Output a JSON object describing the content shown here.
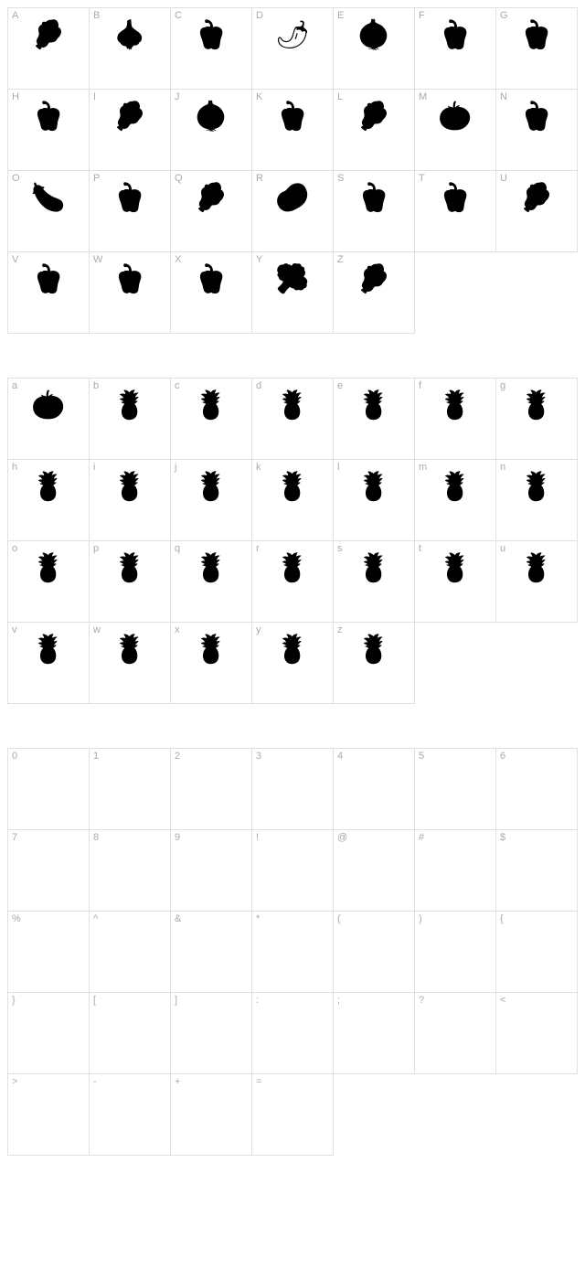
{
  "ui_colors": {
    "cell_border": "#e0e0e0",
    "label_color": "#aaaaaa",
    "glyph_color": "#000000",
    "background": "#ffffff"
  },
  "label_fontsize": 11,
  "sections": [
    {
      "id": "uppercase",
      "columns": 7,
      "cells": [
        {
          "label": "A",
          "glyph": "🥬",
          "icon": "lettuce-icon"
        },
        {
          "label": "B",
          "glyph": "🧄",
          "icon": "garlic-icon"
        },
        {
          "label": "C",
          "glyph": "🫑",
          "icon": "pepper-icon"
        },
        {
          "label": "D",
          "glyph": "🌶",
          "icon": "chili-icon"
        },
        {
          "label": "E",
          "glyph": "🧅",
          "icon": "onion-icon"
        },
        {
          "label": "F",
          "glyph": "🫑",
          "icon": "pepper-icon"
        },
        {
          "label": "G",
          "glyph": "🫑",
          "icon": "pepper-icon"
        },
        {
          "label": "H",
          "glyph": "🫑",
          "icon": "pepper-icon"
        },
        {
          "label": "I",
          "glyph": "🥬",
          "icon": "cabbage-icon"
        },
        {
          "label": "J",
          "glyph": "🧅",
          "icon": "onion-icon"
        },
        {
          "label": "K",
          "glyph": "🫑",
          "icon": "pepper-icon"
        },
        {
          "label": "L",
          "glyph": "🥬",
          "icon": "lettuce-icon"
        },
        {
          "label": "M",
          "glyph": "🍅",
          "icon": "tomato-icon"
        },
        {
          "label": "N",
          "glyph": "🫑",
          "icon": "pepper-icon"
        },
        {
          "label": "O",
          "glyph": "🍆",
          "icon": "eggplant-icon"
        },
        {
          "label": "P",
          "glyph": "🫑",
          "icon": "pepper-icon"
        },
        {
          "label": "Q",
          "glyph": "🥬",
          "icon": "cabbage-icon"
        },
        {
          "label": "R",
          "glyph": "🥔",
          "icon": "potato-icon"
        },
        {
          "label": "S",
          "glyph": "🫑",
          "icon": "pepper-icon"
        },
        {
          "label": "T",
          "glyph": "🫑",
          "icon": "pepper-icon"
        },
        {
          "label": "U",
          "glyph": "🥬",
          "icon": "lettuce-icon"
        },
        {
          "label": "V",
          "glyph": "🫑",
          "icon": "pepper-icon"
        },
        {
          "label": "W",
          "glyph": "🫑",
          "icon": "pepper-icon"
        },
        {
          "label": "X",
          "glyph": "🫑",
          "icon": "pepper-icon"
        },
        {
          "label": "Y",
          "glyph": "🥦",
          "icon": "broccoli-icon"
        },
        {
          "label": "Z",
          "glyph": "🥬",
          "icon": "lettuce-icon"
        }
      ]
    },
    {
      "id": "lowercase",
      "columns": 7,
      "cells": [
        {
          "label": "a",
          "glyph": "🍅",
          "icon": "tomato-icon"
        },
        {
          "label": "b",
          "glyph": "🍍",
          "icon": "pineapple-icon"
        },
        {
          "label": "c",
          "glyph": "🍍",
          "icon": "pineapple-icon"
        },
        {
          "label": "d",
          "glyph": "🍍",
          "icon": "pineapple-icon"
        },
        {
          "label": "e",
          "glyph": "🍍",
          "icon": "pineapple-icon"
        },
        {
          "label": "f",
          "glyph": "🍍",
          "icon": "pineapple-icon"
        },
        {
          "label": "g",
          "glyph": "🍍",
          "icon": "pineapple-icon"
        },
        {
          "label": "h",
          "glyph": "🍍",
          "icon": "pineapple-icon"
        },
        {
          "label": "i",
          "glyph": "🍍",
          "icon": "pineapple-icon"
        },
        {
          "label": "j",
          "glyph": "🍍",
          "icon": "pineapple-icon"
        },
        {
          "label": "k",
          "glyph": "🍍",
          "icon": "pineapple-icon"
        },
        {
          "label": "l",
          "glyph": "🍍",
          "icon": "pineapple-icon"
        },
        {
          "label": "m",
          "glyph": "🍍",
          "icon": "pineapple-icon"
        },
        {
          "label": "n",
          "glyph": "🍍",
          "icon": "pineapple-icon"
        },
        {
          "label": "o",
          "glyph": "🍍",
          "icon": "pineapple-icon"
        },
        {
          "label": "p",
          "glyph": "🍍",
          "icon": "pineapple-icon"
        },
        {
          "label": "q",
          "glyph": "🍍",
          "icon": "pineapple-icon"
        },
        {
          "label": "r",
          "glyph": "🍍",
          "icon": "pineapple-icon"
        },
        {
          "label": "s",
          "glyph": "🍍",
          "icon": "pineapple-icon"
        },
        {
          "label": "t",
          "glyph": "🍍",
          "icon": "pineapple-icon"
        },
        {
          "label": "u",
          "glyph": "🍍",
          "icon": "pineapple-icon"
        },
        {
          "label": "v",
          "glyph": "🍍",
          "icon": "pineapple-icon"
        },
        {
          "label": "w",
          "glyph": "🍍",
          "icon": "pineapple-icon"
        },
        {
          "label": "x",
          "glyph": "🍍",
          "icon": "pineapple-icon"
        },
        {
          "label": "y",
          "glyph": "🍍",
          "icon": "pineapple-icon"
        },
        {
          "label": "z",
          "glyph": "🍍",
          "icon": "pineapple-icon"
        }
      ]
    },
    {
      "id": "symbols",
      "columns": 7,
      "cells": [
        {
          "label": "0",
          "glyph": "",
          "icon": "empty-icon"
        },
        {
          "label": "1",
          "glyph": "",
          "icon": "empty-icon"
        },
        {
          "label": "2",
          "glyph": "",
          "icon": "empty-icon"
        },
        {
          "label": "3",
          "glyph": "",
          "icon": "empty-icon"
        },
        {
          "label": "4",
          "glyph": "",
          "icon": "empty-icon"
        },
        {
          "label": "5",
          "glyph": "",
          "icon": "empty-icon"
        },
        {
          "label": "6",
          "glyph": "",
          "icon": "empty-icon"
        },
        {
          "label": "7",
          "glyph": "",
          "icon": "empty-icon"
        },
        {
          "label": "8",
          "glyph": "",
          "icon": "empty-icon"
        },
        {
          "label": "9",
          "glyph": "",
          "icon": "empty-icon"
        },
        {
          "label": "!",
          "glyph": "",
          "icon": "empty-icon"
        },
        {
          "label": "@",
          "glyph": "",
          "icon": "empty-icon"
        },
        {
          "label": "#",
          "glyph": "",
          "icon": "empty-icon"
        },
        {
          "label": "$",
          "glyph": "",
          "icon": "empty-icon"
        },
        {
          "label": "%",
          "glyph": "",
          "icon": "empty-icon"
        },
        {
          "label": "^",
          "glyph": "",
          "icon": "empty-icon"
        },
        {
          "label": "&",
          "glyph": "",
          "icon": "empty-icon"
        },
        {
          "label": "*",
          "glyph": "",
          "icon": "empty-icon"
        },
        {
          "label": "(",
          "glyph": "",
          "icon": "empty-icon"
        },
        {
          "label": ")",
          "glyph": "",
          "icon": "empty-icon"
        },
        {
          "label": "{",
          "glyph": "",
          "icon": "empty-icon"
        },
        {
          "label": "}",
          "glyph": "",
          "icon": "empty-icon"
        },
        {
          "label": "[",
          "glyph": "",
          "icon": "empty-icon"
        },
        {
          "label": "]",
          "glyph": "",
          "icon": "empty-icon"
        },
        {
          "label": ":",
          "glyph": "",
          "icon": "empty-icon"
        },
        {
          "label": ";",
          "glyph": "",
          "icon": "empty-icon"
        },
        {
          "label": "?",
          "glyph": "",
          "icon": "empty-icon"
        },
        {
          "label": "<",
          "glyph": "",
          "icon": "empty-icon"
        },
        {
          "label": ">",
          "glyph": "",
          "icon": "empty-icon"
        },
        {
          "label": "-",
          "glyph": "",
          "icon": "empty-icon"
        },
        {
          "label": "+",
          "glyph": "",
          "icon": "empty-icon"
        },
        {
          "label": "=",
          "glyph": "",
          "icon": "empty-icon"
        }
      ]
    }
  ]
}
